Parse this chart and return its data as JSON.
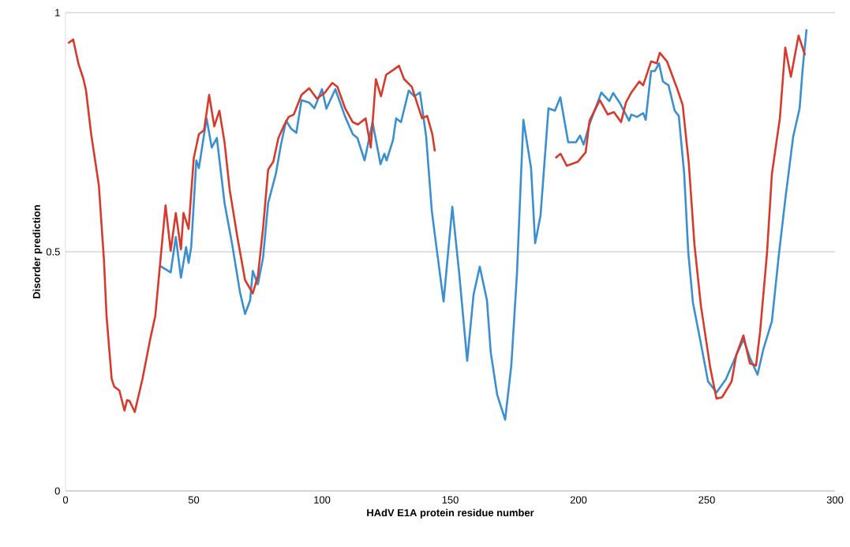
{
  "chart_data": {
    "type": "line",
    "xlabel": "HAdV E1A protein residue number",
    "ylabel": "Disorder prediction",
    "xlim": [
      0,
      300
    ],
    "xticks": [
      0,
      50,
      100,
      150,
      200,
      250,
      300
    ],
    "ylim": [
      0,
      1
    ],
    "yticks": [
      0,
      0.5,
      1
    ],
    "grid": "y",
    "marker": "none",
    "series": [
      {
        "color": "#3a8fd0",
        "x": [
          37,
          41,
          43,
          45,
          47,
          48,
          49,
          51,
          52,
          55,
          57,
          59,
          62,
          65,
          68,
          70,
          72,
          73,
          75,
          77,
          79,
          82,
          84,
          86,
          88,
          90,
          92,
          95,
          97,
          100,
          101.7,
          105.2,
          108.9,
          112,
          113.8,
          116.6,
          119.7,
          122.8,
          124.3,
          125.2,
          127.7,
          128.9,
          130.8,
          133.8,
          136,
          138.2,
          140.6,
          142.8,
          144.6,
          147.4,
          150.8,
          153.5,
          156.6,
          159.1,
          161.5,
          164.3,
          165.8,
          168.3,
          171.4,
          173.8,
          176,
          178.5,
          181.5,
          183.1,
          185.2,
          188.3,
          190.8,
          192.9,
          196,
          199,
          200.6,
          202,
          204.3,
          208.9,
          212,
          213.5,
          216,
          219.7,
          220.6,
          222.8,
          225.2,
          226.2,
          228.3,
          229.8,
          231.4,
          232.9,
          235.1,
          237.5,
          239.1,
          241.2,
          242.8,
          244.6,
          247.4,
          250.5,
          253.8,
          257.5,
          261.5,
          264.3,
          266.8,
          269.8,
          272,
          275.4,
          278.2,
          280.6,
          283.7,
          286.2,
          287.4,
          288.9
        ],
        "values": [
          0.47,
          0.457,
          0.531,
          0.446,
          0.51,
          0.477,
          0.51,
          0.691,
          0.675,
          0.779,
          0.718,
          0.738,
          0.602,
          0.515,
          0.416,
          0.37,
          0.399,
          0.46,
          0.432,
          0.487,
          0.602,
          0.663,
          0.724,
          0.774,
          0.757,
          0.749,
          0.817,
          0.812,
          0.8,
          0.84,
          0.799,
          0.84,
          0.784,
          0.746,
          0.738,
          0.691,
          0.771,
          0.683,
          0.705,
          0.691,
          0.734,
          0.779,
          0.771,
          0.837,
          0.825,
          0.833,
          0.741,
          0.586,
          0.51,
          0.396,
          0.594,
          0.454,
          0.272,
          0.411,
          0.469,
          0.399,
          0.289,
          0.201,
          0.149,
          0.262,
          0.454,
          0.776,
          0.675,
          0.518,
          0.576,
          0.8,
          0.795,
          0.823,
          0.729,
          0.729,
          0.743,
          0.724,
          0.767,
          0.833,
          0.815,
          0.832,
          0.812,
          0.774,
          0.787,
          0.782,
          0.79,
          0.776,
          0.878,
          0.878,
          0.894,
          0.856,
          0.848,
          0.795,
          0.784,
          0.663,
          0.498,
          0.394,
          0.317,
          0.229,
          0.206,
          0.234,
          0.284,
          0.317,
          0.279,
          0.243,
          0.295,
          0.355,
          0.498,
          0.609,
          0.741,
          0.8,
          0.883,
          0.965
        ]
      },
      {
        "color": "#d7392b",
        "x": [
          1,
          3,
          5,
          7,
          8,
          10,
          13,
          15,
          16,
          18,
          19,
          21,
          23,
          24,
          25,
          27,
          30,
          33,
          35,
          37,
          39,
          41,
          43,
          45,
          46,
          48,
          50,
          52,
          54,
          56,
          58,
          60,
          62,
          64,
          67,
          70,
          73,
          75,
          77,
          79,
          81,
          83,
          85,
          87,
          89,
          92,
          95,
          98,
          101,
          104,
          106,
          109,
          112,
          114,
          117,
          119,
          121,
          123,
          125,
          128,
          130,
          132,
          135,
          137,
          139,
          141,
          143,
          144,
          167,
          191,
          193,
          195.4,
          199.7,
          202.8,
          204.3,
          208.3,
          211.4,
          213.8,
          216.6,
          218.5,
          220.6,
          223.7,
          225.2,
          228.3,
          230.5,
          231.7,
          234.5,
          238.2,
          240.6,
          243,
          245.2,
          247.7,
          251.4,
          253.8,
          256,
          259.7,
          261.5,
          264.3,
          266.8,
          269.2,
          270.8,
          273.5,
          275.4,
          278.5,
          280.6,
          282.8,
          285.8,
          288.3
        ],
        "values": [
          0.936,
          0.944,
          0.894,
          0.861,
          0.837,
          0.746,
          0.639,
          0.482,
          0.366,
          0.234,
          0.218,
          0.21,
          0.168,
          0.19,
          0.188,
          0.165,
          0.234,
          0.317,
          0.366,
          0.482,
          0.597,
          0.502,
          0.581,
          0.505,
          0.581,
          0.548,
          0.696,
          0.746,
          0.754,
          0.828,
          0.762,
          0.795,
          0.729,
          0.63,
          0.531,
          0.441,
          0.413,
          0.449,
          0.548,
          0.672,
          0.688,
          0.738,
          0.762,
          0.782,
          0.787,
          0.828,
          0.842,
          0.82,
          0.832,
          0.853,
          0.845,
          0.8,
          0.771,
          0.766,
          0.779,
          0.718,
          0.861,
          0.825,
          0.87,
          0.881,
          0.889,
          0.861,
          0.845,
          0.812,
          0.779,
          0.784,
          0.746,
          0.71,
          null,
          0.696,
          0.705,
          0.68,
          0.688,
          0.708,
          0.774,
          0.817,
          0.787,
          0.792,
          0.771,
          0.812,
          0.833,
          0.856,
          0.848,
          0.898,
          0.894,
          0.916,
          0.898,
          0.845,
          0.807,
          0.685,
          0.515,
          0.388,
          0.256,
          0.193,
          0.196,
          0.229,
          0.284,
          0.325,
          0.267,
          0.262,
          0.333,
          0.498,
          0.663,
          0.779,
          0.927,
          0.866,
          0.952,
          0.911
        ]
      }
    ]
  }
}
